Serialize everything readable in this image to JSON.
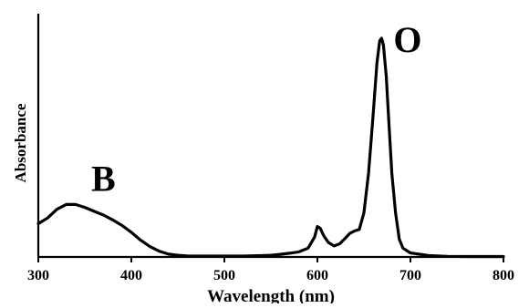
{
  "chart_data": {
    "type": "line",
    "title": "",
    "xlabel": "Wavelength (nm)",
    "ylabel": "Absorbance",
    "xlim": [
      300,
      800
    ],
    "ylim": [
      0,
      1
    ],
    "x_ticks": [
      300,
      400,
      500,
      600,
      700,
      800
    ],
    "y_ticks": [],
    "grid": false,
    "legend": "none",
    "series": [
      {
        "color": "#000000",
        "points": [
          [
            300,
            0.151
          ],
          [
            310,
            0.177
          ],
          [
            320,
            0.216
          ],
          [
            330,
            0.238
          ],
          [
            340,
            0.238
          ],
          [
            350,
            0.225
          ],
          [
            360,
            0.207
          ],
          [
            370,
            0.19
          ],
          [
            380,
            0.168
          ],
          [
            390,
            0.143
          ],
          [
            400,
            0.112
          ],
          [
            410,
            0.076
          ],
          [
            420,
            0.047
          ],
          [
            430,
            0.026
          ],
          [
            440,
            0.013
          ],
          [
            450,
            0.008
          ],
          [
            460,
            0.005
          ],
          [
            480,
            0.004
          ],
          [
            500,
            0.004
          ],
          [
            520,
            0.004
          ],
          [
            540,
            0.006
          ],
          [
            550,
            0.008
          ],
          [
            560,
            0.012
          ],
          [
            570,
            0.017
          ],
          [
            580,
            0.023
          ],
          [
            590,
            0.04
          ],
          [
            597,
            0.09
          ],
          [
            600,
            0.138
          ],
          [
            603,
            0.13
          ],
          [
            607,
            0.095
          ],
          [
            612,
            0.065
          ],
          [
            618,
            0.05
          ],
          [
            624,
            0.06
          ],
          [
            630,
            0.085
          ],
          [
            635,
            0.108
          ],
          [
            640,
            0.118
          ],
          [
            645,
            0.125
          ],
          [
            650,
            0.2
          ],
          [
            655,
            0.38
          ],
          [
            660,
            0.65
          ],
          [
            664,
            0.88
          ],
          [
            667,
            0.98
          ],
          [
            669,
            0.992
          ],
          [
            671,
            0.96
          ],
          [
            674,
            0.82
          ],
          [
            677,
            0.6
          ],
          [
            680,
            0.38
          ],
          [
            684,
            0.2
          ],
          [
            688,
            0.08
          ],
          [
            692,
            0.04
          ],
          [
            700,
            0.018
          ],
          [
            720,
            0.006
          ],
          [
            740,
            0.003
          ],
          [
            760,
            0.002
          ],
          [
            780,
            0.002
          ],
          [
            800,
            0.002
          ]
        ]
      }
    ],
    "annotations": [
      {
        "text": "B",
        "x": 370,
        "y": 0.3
      },
      {
        "text": "O",
        "x": 697,
        "y": 0.93
      }
    ]
  }
}
